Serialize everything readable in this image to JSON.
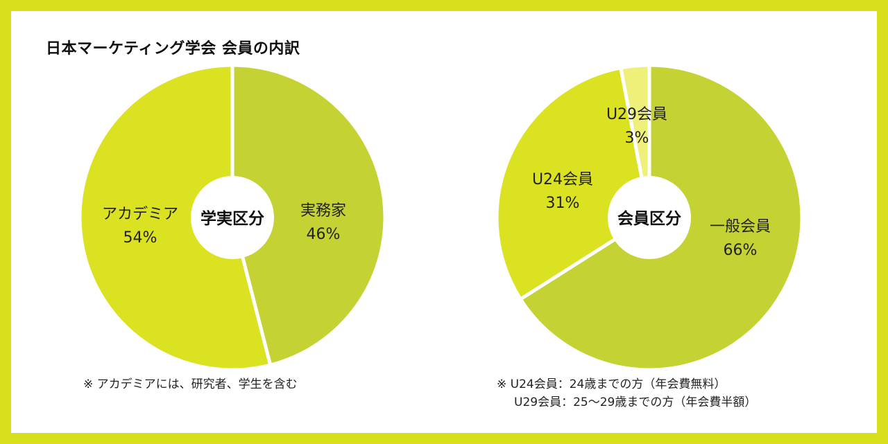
{
  "title": "日本マーケティング学会 会員の内訳",
  "chart_data": [
    {
      "type": "pie",
      "title": "学実区分",
      "slices": [
        {
          "label": "実務家",
          "value": 46,
          "value_label": "46%",
          "color": "#c4d233"
        },
        {
          "label": "アカデミア",
          "value": 54,
          "value_label": "54%",
          "color": "#dae221"
        }
      ]
    },
    {
      "type": "pie",
      "title": "会員区分",
      "slices": [
        {
          "label": "一般会員",
          "value": 66,
          "value_label": "66%",
          "color": "#c4d233"
        },
        {
          "label": "U24会員",
          "value": 31,
          "value_label": "31%",
          "color": "#dae221"
        },
        {
          "label": "U29会員",
          "value": 3,
          "value_label": "3%",
          "color": "#eff07a"
        }
      ]
    }
  ],
  "notes": {
    "left": "※ アカデミアには、研究者、学生を含む",
    "right_line1": "※ U24会員：24歳までの方（年会費無料）",
    "right_line2": "U29会員：25〜29歳までの方（年会費半額）"
  }
}
